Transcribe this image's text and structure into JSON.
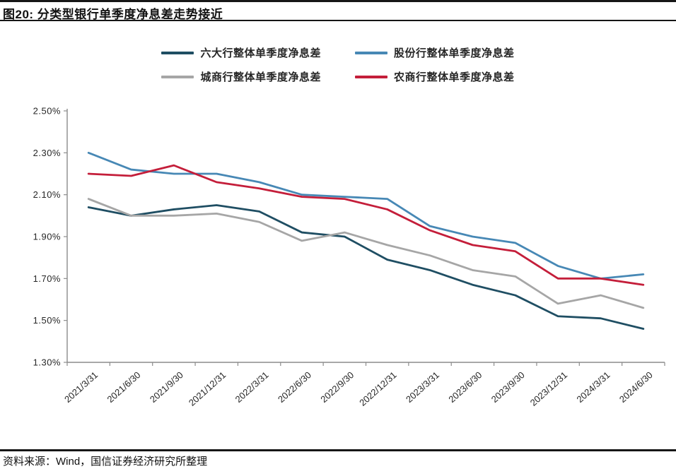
{
  "page": {
    "title": "图20: 分类型银行单季度净息差走势接近",
    "source_note": "资料来源：Wind，国信证券经济研究所整理"
  },
  "chart_data": {
    "type": "line",
    "title": "分类型银行单季度净息差走势接近",
    "xlabel": "",
    "ylabel": "",
    "ylim": [
      1.3,
      2.5
    ],
    "ytick_step": 0.2,
    "ytick_labels": [
      "2.50%",
      "2.30%",
      "2.10%",
      "1.90%",
      "1.70%",
      "1.50%",
      "1.30%"
    ],
    "grid": false,
    "legend_position": "top",
    "categories": [
      "2021/3/31",
      "2021/6/30",
      "2021/9/30",
      "2021/12/31",
      "2022/3/31",
      "2022/6/30",
      "2022/9/30",
      "2022/12/31",
      "2023/3/31",
      "2023/6/30",
      "2023/9/30",
      "2023/12/31",
      "2024/3/31",
      "2024/6/30"
    ],
    "series": [
      {
        "name": "六大行整体单季度净息差",
        "color": "#1F4E63",
        "values": [
          2.04,
          2.0,
          2.03,
          2.05,
          2.02,
          1.92,
          1.9,
          1.79,
          1.74,
          1.67,
          1.62,
          1.52,
          1.51,
          1.46
        ]
      },
      {
        "name": "股份行整体单季度净息差",
        "color": "#4788B5",
        "values": [
          2.3,
          2.22,
          2.2,
          2.2,
          2.16,
          2.1,
          2.09,
          2.08,
          1.95,
          1.9,
          1.87,
          1.76,
          1.7,
          1.72
        ]
      },
      {
        "name": "城商行整体单季度净息差",
        "color": "#A6A6A6",
        "values": [
          2.08,
          2.0,
          2.0,
          2.01,
          1.97,
          1.88,
          1.92,
          1.86,
          1.81,
          1.74,
          1.71,
          1.58,
          1.62,
          1.56
        ]
      },
      {
        "name": "农商行整体单季度净息差",
        "color": "#C41E3A",
        "values": [
          2.2,
          2.19,
          2.24,
          2.16,
          2.13,
          2.09,
          2.08,
          2.03,
          1.93,
          1.86,
          1.83,
          1.7,
          1.7,
          1.67
        ]
      }
    ]
  }
}
